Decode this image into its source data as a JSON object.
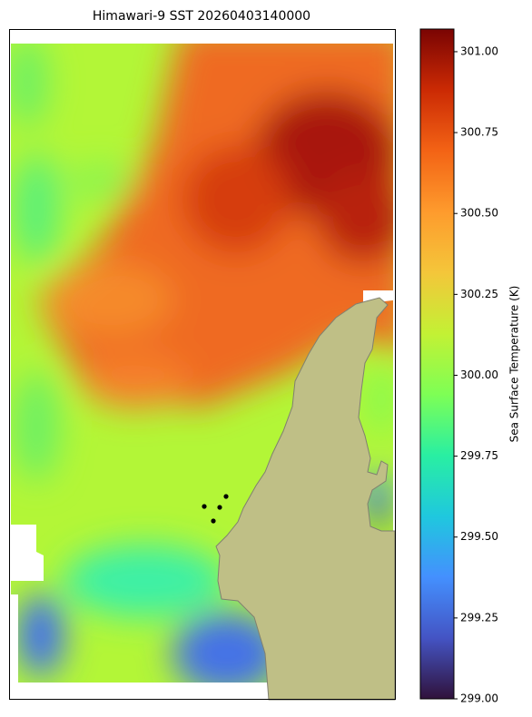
{
  "chart_data": {
    "type": "heatmap",
    "title": "Himawari-9 SST 20260403140000",
    "colorbar_label": "Sea Surface Temperature (K)",
    "colormap": "turbo",
    "clim": [
      299,
      301.07
    ],
    "cticks": [
      {
        "value": 299,
        "label": "299.00"
      },
      {
        "value": 299.25,
        "label": "299.25"
      },
      {
        "value": 299.5,
        "label": "299.50"
      },
      {
        "value": 299.75,
        "label": "299.75"
      },
      {
        "value": 300,
        "label": "300.00"
      },
      {
        "value": 300.25,
        "label": "300.25"
      },
      {
        "value": 300.5,
        "label": "300.50"
      },
      {
        "value": 300.75,
        "label": "300.75"
      },
      {
        "value": 301,
        "label": "301.00"
      }
    ]
  }
}
